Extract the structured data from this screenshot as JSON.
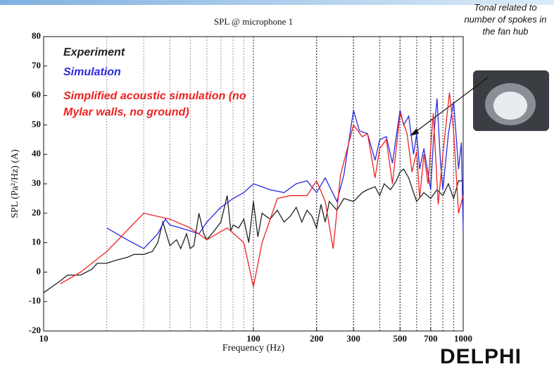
{
  "chart_data": {
    "type": "line",
    "title": "SPL @ microphone 1",
    "x_label": "Frequency (Hz)",
    "y_label": "SPL (Pa²/Hz) (A)",
    "log_x": true,
    "grid": true,
    "xlim": [
      10,
      1000
    ],
    "xticks": [
      10,
      100,
      200,
      300,
      500,
      700,
      1000
    ],
    "ylim": [
      -20,
      80
    ],
    "yticks": [
      -20,
      -10,
      0,
      10,
      20,
      30,
      40,
      50,
      60,
      70,
      80
    ],
    "series": [
      {
        "name": "Experiment",
        "color": "#222222",
        "x": [
          10,
          12,
          13,
          15,
          17,
          18,
          20,
          22,
          25,
          27,
          30,
          33,
          35,
          37,
          40,
          43,
          45,
          48,
          50,
          52,
          55,
          58,
          60,
          65,
          70,
          75,
          78,
          80,
          85,
          90,
          95,
          100,
          105,
          110,
          120,
          130,
          140,
          150,
          160,
          170,
          180,
          190,
          200,
          210,
          220,
          230,
          250,
          270,
          300,
          330,
          350,
          380,
          400,
          420,
          450,
          480,
          500,
          520,
          550,
          580,
          600,
          650,
          700,
          750,
          800,
          850,
          900,
          950,
          1000
        ],
        "values": [
          -7,
          -3,
          -1,
          -1,
          1,
          3,
          3,
          4,
          5,
          6,
          6,
          7,
          10,
          17,
          9,
          11,
          8,
          13,
          8,
          9,
          20,
          13,
          11,
          14,
          17,
          26,
          14,
          16,
          15,
          18,
          10,
          24,
          12,
          20,
          18,
          21,
          17,
          19,
          22,
          17,
          21,
          19,
          15,
          23,
          17,
          24,
          21,
          25,
          24,
          27,
          28,
          29,
          26,
          30,
          28,
          31,
          34,
          35,
          32,
          27,
          24,
          27,
          25,
          28,
          26,
          30,
          25,
          31,
          31
        ]
      },
      {
        "name": "Simulation",
        "color": "#2a2ae0",
        "x": [
          20,
          25,
          30,
          35,
          38,
          40,
          45,
          50,
          55,
          60,
          70,
          80,
          90,
          100,
          120,
          140,
          160,
          180,
          200,
          220,
          250,
          270,
          300,
          320,
          350,
          380,
          400,
          430,
          460,
          500,
          520,
          550,
          580,
          600,
          620,
          650,
          700,
          720,
          750,
          780,
          800,
          850,
          900,
          950,
          980,
          1000
        ],
        "values": [
          15,
          11,
          8,
          13,
          18,
          16,
          15,
          14,
          13,
          17,
          22,
          25,
          27,
          30,
          28,
          27,
          30,
          31,
          27,
          32,
          24,
          33,
          55,
          48,
          47,
          38,
          45,
          46,
          37,
          55,
          50,
          53,
          40,
          47,
          35,
          42,
          28,
          44,
          59,
          37,
          28,
          47,
          58,
          35,
          44,
          14
        ]
      },
      {
        "name": "Simplified acoustic simulation (no Mylar walls, no ground)",
        "color": "#ee2222",
        "x": [
          12,
          15,
          20,
          30,
          40,
          50,
          60,
          75,
          90,
          100,
          110,
          130,
          150,
          180,
          200,
          220,
          240,
          260,
          300,
          330,
          350,
          380,
          400,
          430,
          460,
          500,
          540,
          570,
          600,
          620,
          650,
          680,
          720,
          760,
          800,
          860,
          900,
          950,
          1000
        ],
        "values": [
          -4,
          0,
          7,
          20,
          18,
          15,
          11,
          15,
          10,
          -5,
          10,
          25,
          26,
          26,
          31,
          24,
          8,
          33,
          50,
          46,
          47,
          32,
          42,
          45,
          30,
          54,
          47,
          34,
          41,
          25,
          40,
          30,
          54,
          23,
          40,
          61,
          48,
          20,
          26
        ]
      }
    ],
    "annotation": "Tonal related to number of spokes in the fan hub",
    "logo": "DELPHI"
  }
}
